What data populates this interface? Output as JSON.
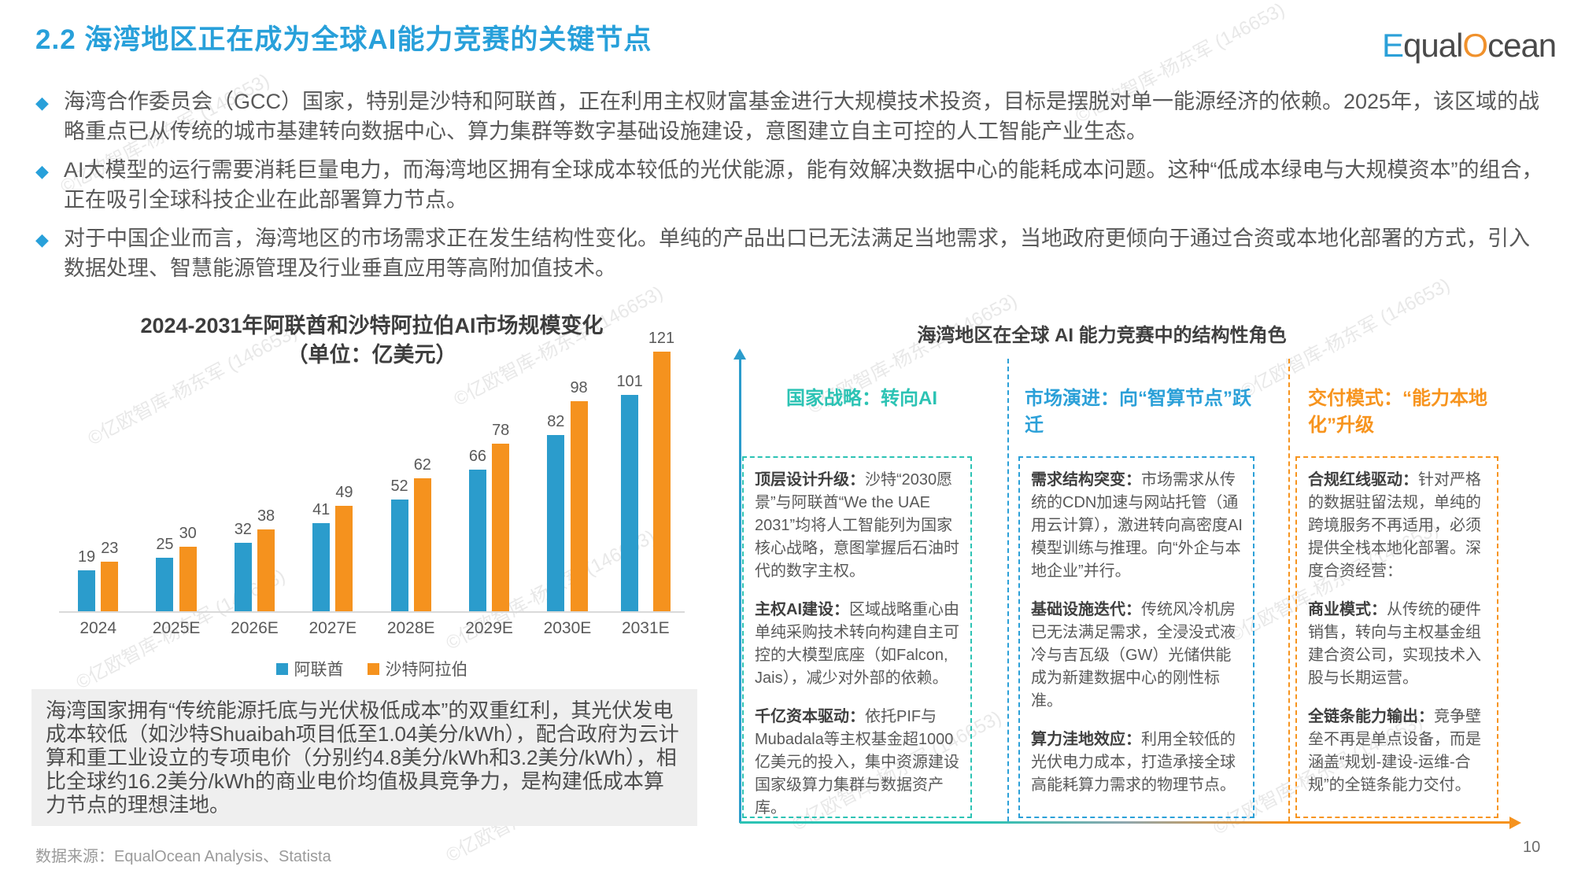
{
  "page": {
    "title": "2.2 海湾地区正在成为全球AI能力竞赛的关键节点",
    "page_number": "10",
    "source": "数据来源：EqualOcean Analysis、Statista",
    "watermark": "©亿欧智库-杨东军 (146653)"
  },
  "logo": {
    "part_e": "E",
    "part_qual": "qual",
    "part_o": "O",
    "part_cean": "cean"
  },
  "bullets": [
    "海湾合作委员会（GCC）国家，特别是沙特和阿联酋，正在利用主权财富基金进行大规模技术投资，目标是摆脱对单一能源经济的依赖。2025年，该区域的战略重点已从传统的城市基建转向数据中心、算力集群等数字基础设施建设，意图建立自主可控的人工智能产业生态。",
    "AI大模型的运行需要消耗巨量电力，而海湾地区拥有全球成本较低的光伏能源，能有效解决数据中心的能耗成本问题。这种“低成本绿电与大规模资本”的组合，正在吸引全球科技企业在此部署算力节点。",
    "对于中国企业而言，海湾地区的市场需求正在发生结构性变化。单纯的产品出口已无法满足当地需求，当地政府更倾向于通过合资或本地化部署的方式，引入数据处理、智慧能源管理及行业垂直应用等高附加值技术。"
  ],
  "chart_data": {
    "type": "bar",
    "title": "2024-2031年阿联酋和沙特阿拉伯AI市场规模变化",
    "subtitle": "（单位：亿美元）",
    "categories": [
      "2024",
      "2025E",
      "2026E",
      "2027E",
      "2028E",
      "2029E",
      "2030E",
      "2031E"
    ],
    "series": [
      {
        "name": "阿联酋",
        "color": "#2b9ccc",
        "values": [
          19,
          25,
          32,
          41,
          52,
          66,
          82,
          101
        ]
      },
      {
        "name": "沙特阿拉伯",
        "color": "#f5921e",
        "values": [
          23,
          30,
          38,
          49,
          62,
          78,
          98,
          121
        ]
      }
    ],
    "ylim": [
      0,
      130
    ],
    "grid": false,
    "legend_position": "bottom"
  },
  "highlight_box": {
    "text": "海湾国家拥有“传统能源托底与光伏极低成本”的双重红利，其光伏发电成本较低（如沙特Shuaibah项目低至1.04美分/kWh），配合政府为云计算和重工业设立的专项电价（分别约4.8美分/kWh和3.2美分/kWh），相比全球约16.2美分/kWh的商业电价均值极具竞争力，是构建低成本算力节点的理想洼地。"
  },
  "diagram": {
    "title": "海湾地区在全球 AI 能力竞赛中的结构性角色",
    "columns": [
      {
        "header": "国家战略：转向AI",
        "color": "#2cc3b4",
        "items": [
          {
            "label": "顶层设计升级：",
            "text": "沙特“2030愿景”与阿联酋“We the UAE 2031”均将人工智能列为国家核心战略，意图掌握后石油时代的数字主权。"
          },
          {
            "label": "主权AI建设：",
            "text": "区域战略重心由单纯采购技术转向构建自主可控的大模型底座（如Falcon, Jais），减少对外部的依赖。"
          },
          {
            "label": "千亿资本驱动：",
            "text": "依托PIF与Mubadala等主权基金超1000亿美元的投入，集中资源建设国家级算力集群与数据资产库。"
          }
        ]
      },
      {
        "header": "市场演进：向“智算节点”跃迁",
        "color": "#2ba0d8",
        "items": [
          {
            "label": "需求结构突变：",
            "text": "市场需求从传统的CDN加速与网站托管（通用云计算），激进转向高密度AI模型训练与推理。向“外企与本地企业”并行。"
          },
          {
            "label": "基础设施迭代：",
            "text": "传统风冷机房已无法满足需求，全浸没式液冷与吉瓦级（GW）光储供能成为新建数据中心的刚性标准。"
          },
          {
            "label": "算力洼地效应：",
            "text": "利用全较低的光伏电力成本，打造承接全球高能耗算力需求的物理节点。"
          }
        ]
      },
      {
        "header": "交付模式：“能力本地化”升级",
        "color": "#f7941e",
        "items": [
          {
            "label": "合规红线驱动：",
            "text": "针对严格的数据驻留法规，单纯的跨境服务不再适用，必须提供全栈本地化部署。深度合资经营："
          },
          {
            "label": "商业模式：",
            "text": "从传统的硬件销售，转向与主权基金组建合资公司，实现技术入股与长期运营。"
          },
          {
            "label": "全链条能力输出：",
            "text": "竞争壁垒不再是单点设备，而是涵盖“规划-建设-运维-合规”的全链条能力交付。"
          }
        ]
      }
    ]
  }
}
